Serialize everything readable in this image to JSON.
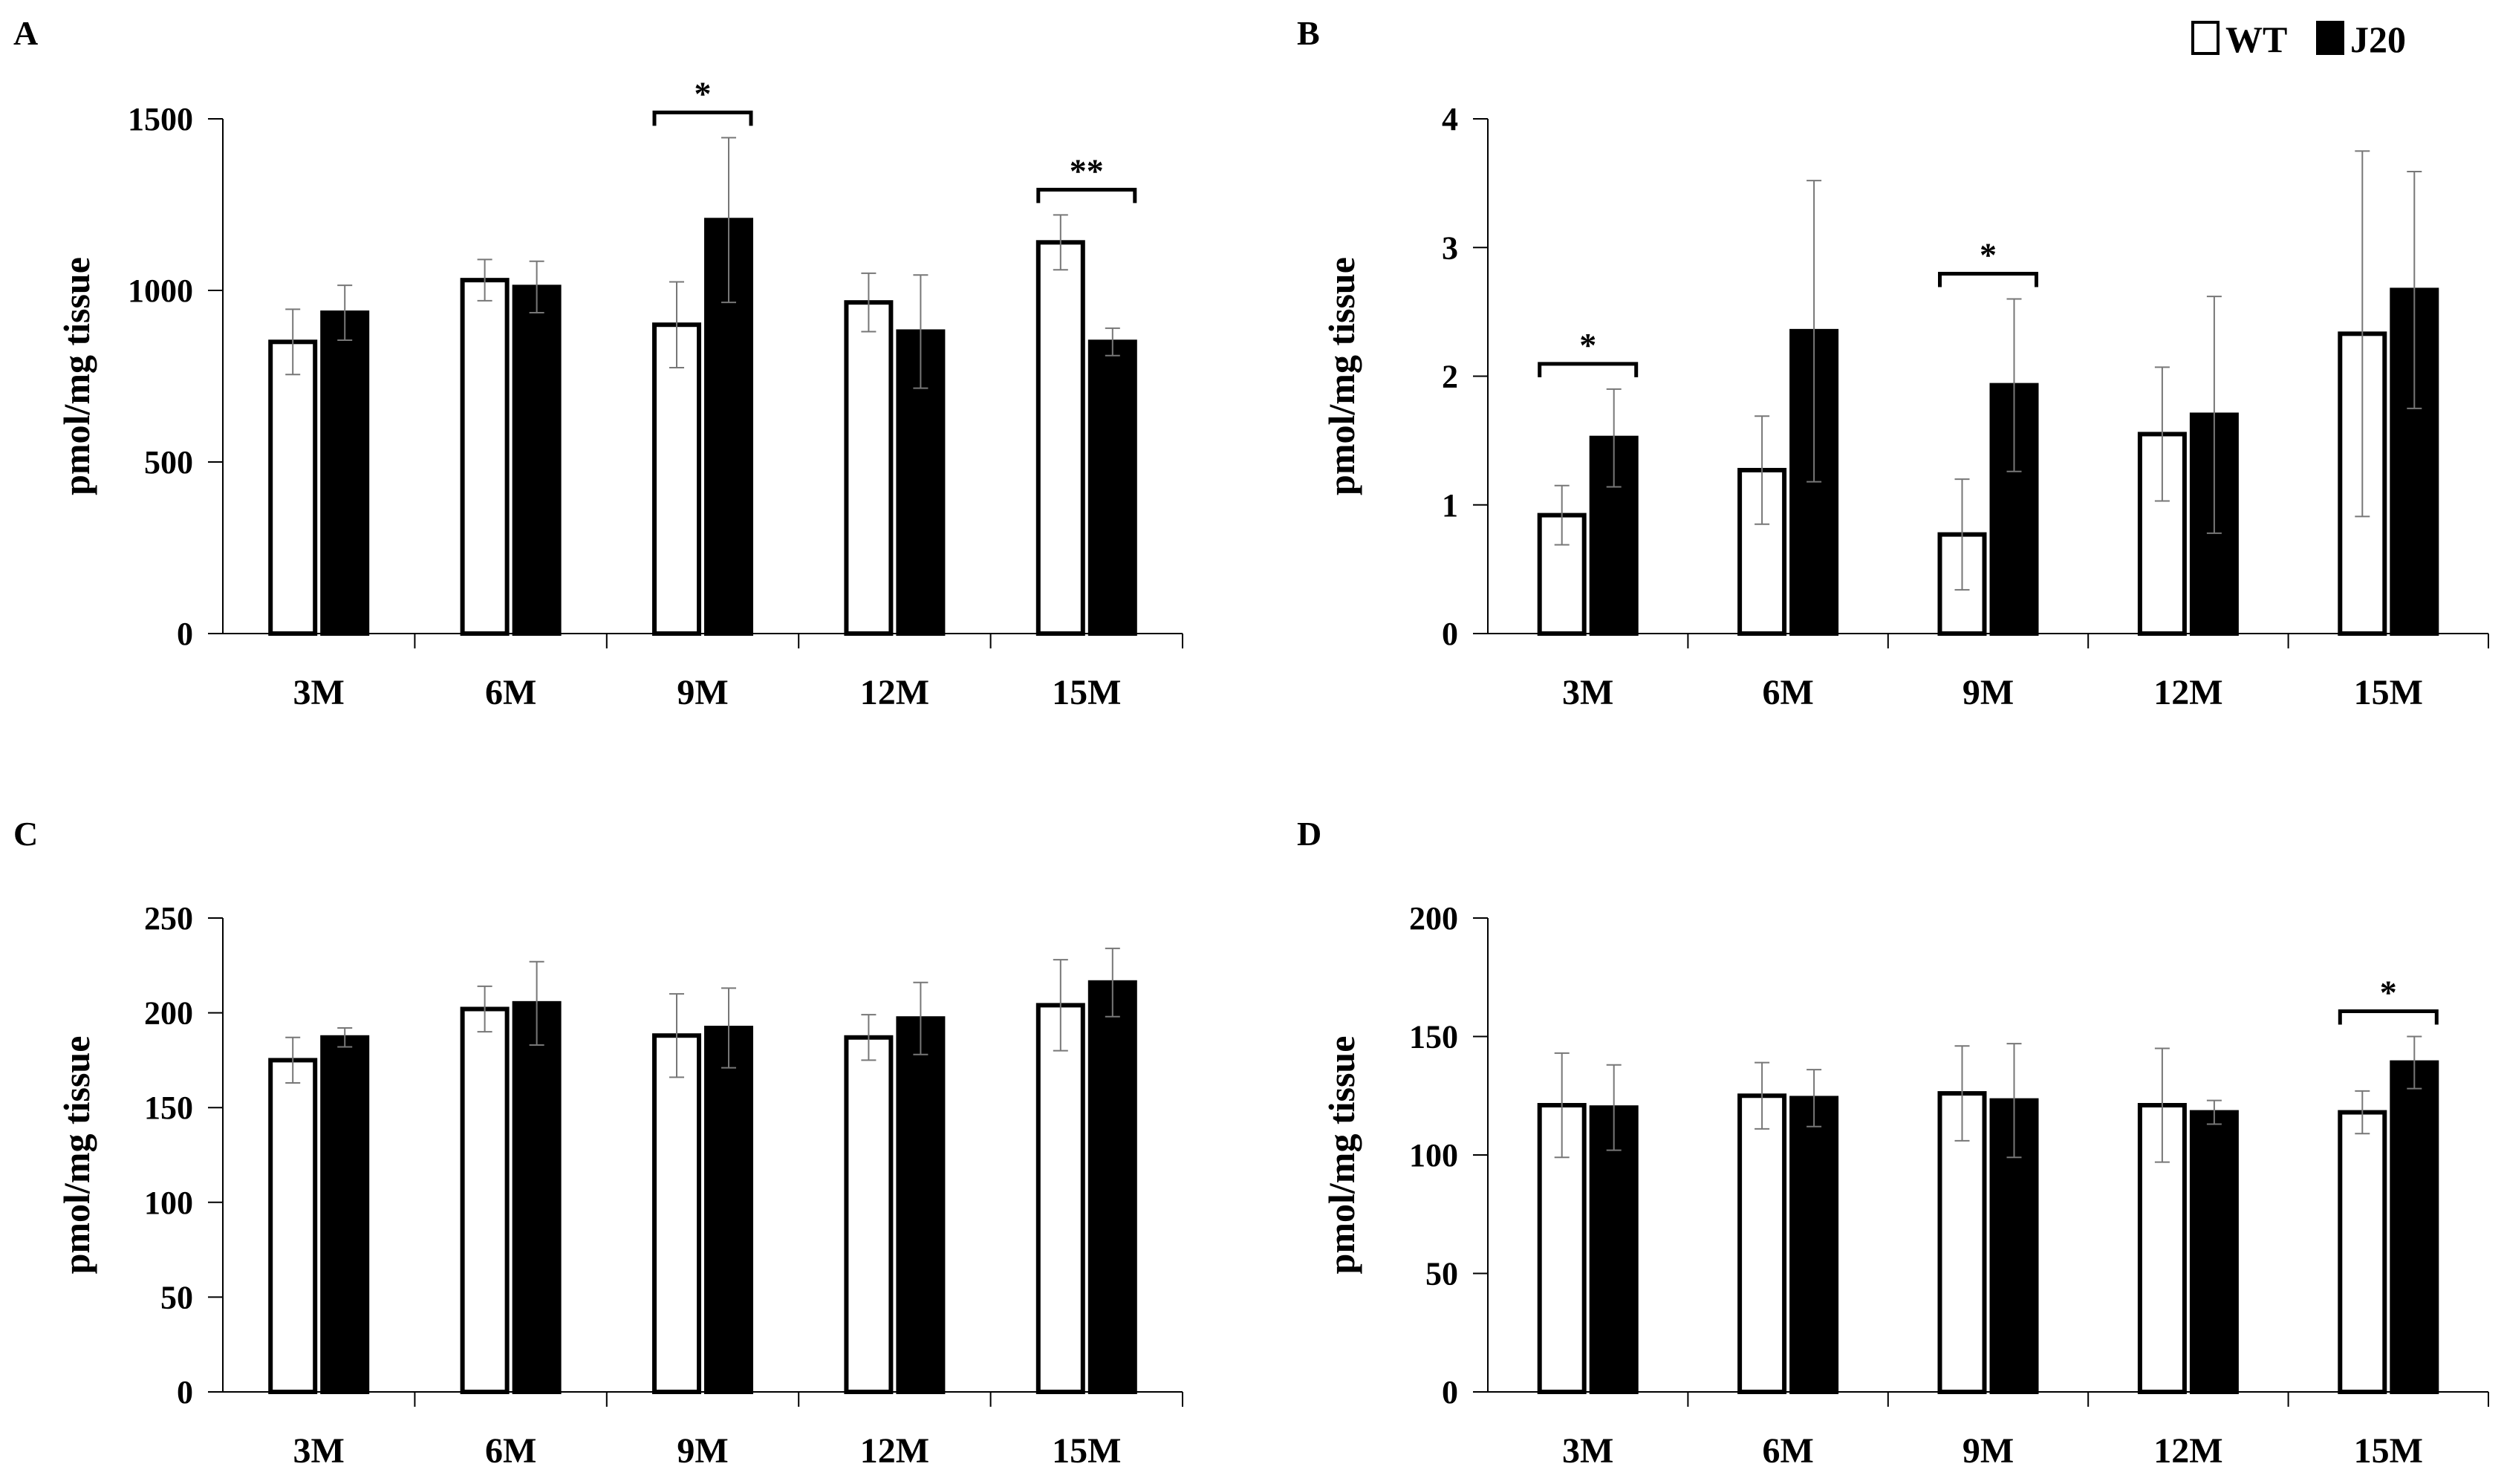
{
  "legend": {
    "items": [
      {
        "label": "WT",
        "fill": "#ffffff"
      },
      {
        "label": "J20",
        "fill": "#000000"
      }
    ]
  },
  "chart_data": [
    {
      "panel": "A",
      "type": "bar",
      "ylabel": "pmol/mg tissue",
      "ylim": [
        0,
        1500
      ],
      "yticks": [
        0,
        500,
        1000,
        1500
      ],
      "categories": [
        "3M",
        "6M",
        "9M",
        "12M",
        "15M"
      ],
      "series": [
        {
          "name": "WT",
          "values": [
            850,
            1030,
            900,
            965,
            1140
          ],
          "errors": [
            95,
            60,
            125,
            85,
            80
          ]
        },
        {
          "name": "J20",
          "values": [
            935,
            1010,
            1205,
            880,
            850
          ],
          "errors": [
            80,
            75,
            240,
            165,
            40
          ]
        }
      ],
      "significance": [
        {
          "category": "9M",
          "label": "*"
        },
        {
          "category": "15M",
          "label": "**"
        }
      ]
    },
    {
      "panel": "B",
      "type": "bar",
      "ylabel": "pmol/mg tissue",
      "ylim": [
        0,
        4
      ],
      "yticks": [
        0,
        1,
        2,
        3,
        4
      ],
      "categories": [
        "3M",
        "6M",
        "9M",
        "12M",
        "15M"
      ],
      "series": [
        {
          "name": "WT",
          "values": [
            0.92,
            1.27,
            0.77,
            1.55,
            2.33
          ],
          "errors": [
            0.23,
            0.42,
            0.43,
            0.52,
            1.42
          ]
        },
        {
          "name": "J20",
          "values": [
            1.52,
            2.35,
            1.93,
            1.7,
            2.67
          ],
          "errors": [
            0.38,
            1.17,
            0.67,
            0.92,
            0.92
          ]
        }
      ],
      "significance": [
        {
          "category": "3M",
          "label": "*"
        },
        {
          "category": "9M",
          "label": "*"
        }
      ]
    },
    {
      "panel": "C",
      "type": "bar",
      "ylabel": "pmol/mg tissue",
      "ylim": [
        0,
        250
      ],
      "yticks": [
        0,
        50,
        100,
        150,
        200,
        250
      ],
      "categories": [
        "3M",
        "6M",
        "9M",
        "12M",
        "15M"
      ],
      "series": [
        {
          "name": "WT",
          "values": [
            175,
            202,
            188,
            187,
            204
          ],
          "errors": [
            12,
            12,
            22,
            12,
            24
          ]
        },
        {
          "name": "J20",
          "values": [
            187,
            205,
            192,
            197,
            216
          ],
          "errors": [
            5,
            22,
            21,
            19,
            18
          ]
        }
      ],
      "significance": []
    },
    {
      "panel": "D",
      "type": "bar",
      "ylabel": "pmol/mg tissue",
      "ylim": [
        0,
        200
      ],
      "yticks": [
        0,
        50,
        100,
        150,
        200
      ],
      "categories": [
        "3M",
        "6M",
        "9M",
        "12M",
        "15M"
      ],
      "series": [
        {
          "name": "WT",
          "values": [
            121,
            125,
            126,
            121,
            118
          ],
          "errors": [
            22,
            14,
            20,
            24,
            9
          ]
        },
        {
          "name": "J20",
          "values": [
            120,
            124,
            123,
            118,
            139
          ],
          "errors": [
            18,
            12,
            24,
            5,
            11
          ]
        }
      ],
      "significance": [
        {
          "category": "15M",
          "label": "*"
        }
      ]
    }
  ]
}
